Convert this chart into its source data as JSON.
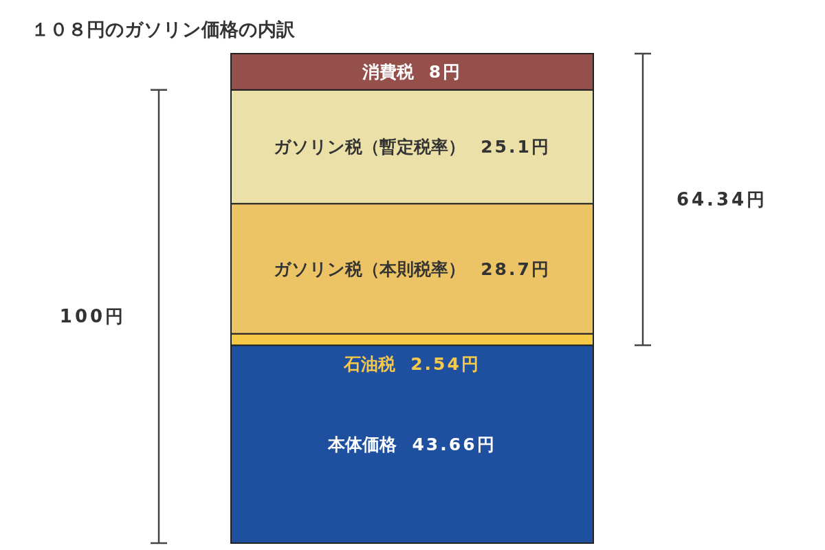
{
  "chart_data": {
    "type": "bar",
    "stacked": true,
    "title": "１０８円のガソリン価格の内訳",
    "categories": [
      null
    ],
    "series": [
      {
        "name": "本体価格",
        "color": "#1f4f9f",
        "values": [
          43.66
        ],
        "value_labels": [
          "43.66円"
        ]
      },
      {
        "name": "石油税",
        "color": "#f7c948",
        "values": [
          2.54
        ],
        "value_labels": [
          "2.54円"
        ]
      },
      {
        "name": "ガソリン税（本則税率）",
        "color": "#ecc466",
        "values": [
          28.7
        ],
        "value_labels": [
          "28.7円"
        ]
      },
      {
        "name": "ガソリン税（暫定税率）",
        "color": "#ebe0a8",
        "values": [
          25.1
        ],
        "value_labels": [
          "25.1円"
        ]
      },
      {
        "name": "消費税",
        "color": "#96504c",
        "values": [
          8
        ],
        "value_labels": [
          "8円"
        ]
      }
    ],
    "annotations": [
      "100円",
      "64.34円"
    ]
  }
}
